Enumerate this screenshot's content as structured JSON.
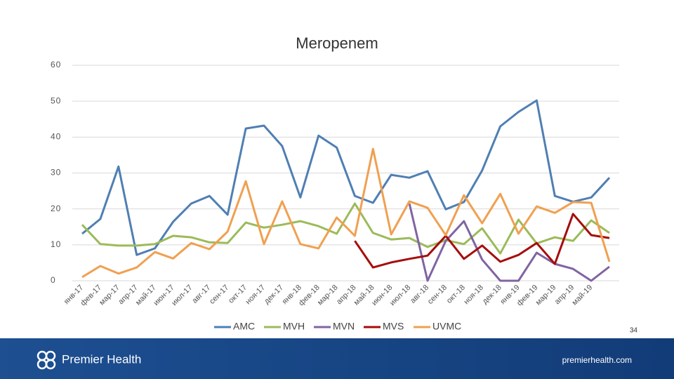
{
  "chart_data": {
    "type": "line",
    "title": "Meropenem",
    "categories": [
      "янв-17",
      "фев-17",
      "мар-17",
      "апр-17",
      "май-17",
      "июн-17",
      "июл-17",
      "авг-17",
      "сен-17",
      "окт-17",
      "ноя-17",
      "дек-17",
      "янв-18",
      "фев-18",
      "мар-18",
      "апр-18",
      "май-18",
      "июн-18",
      "июл-18",
      "авг-18",
      "сен-18",
      "окт-18",
      "ноя-18",
      "дек-18",
      "янв-19",
      "фев-19",
      "мар-19",
      "апр-19",
      "май-19",
      null
    ],
    "series": [
      {
        "name": "AMC",
        "color": "#4f7fb3",
        "values": [
          13.1,
          17.2,
          31.8,
          7.2,
          9,
          16.4,
          21.5,
          23.6,
          18.4,
          42.4,
          43.2,
          37.5,
          23.2,
          40.4,
          37.1,
          23.6,
          21.7,
          29.5,
          28.7,
          30.5,
          19.9,
          21.9,
          30.7,
          43,
          47,
          50.2,
          23.6,
          22,
          23.2,
          28.7
        ]
      },
      {
        "name": "MVH",
        "color": "#9bbb59",
        "values": [
          15.6,
          10.2,
          9.8,
          9.8,
          10.2,
          12.5,
          12.1,
          10.7,
          10.5,
          16.2,
          14.8,
          15.6,
          16.6,
          15.2,
          13.1,
          21.5,
          13.3,
          11.5,
          11.9,
          9.4,
          11.3,
          10.2,
          14.6,
          7.6,
          17,
          10.4,
          12.1,
          11.1,
          16.8,
          13.3
        ]
      },
      {
        "name": "MVN",
        "color": "#8064a2",
        "values": [
          null,
          null,
          null,
          null,
          null,
          null,
          null,
          null,
          null,
          null,
          null,
          null,
          null,
          null,
          null,
          null,
          null,
          null,
          21.5,
          0,
          11.1,
          16.6,
          5.9,
          0,
          0,
          7.8,
          4.7,
          3.3,
          0,
          3.9
        ]
      },
      {
        "name": "MVS",
        "color": "#a50d0d",
        "values": [
          null,
          null,
          null,
          null,
          null,
          null,
          null,
          null,
          null,
          null,
          null,
          null,
          null,
          null,
          null,
          11.1,
          3.7,
          5.1,
          6.1,
          7,
          12.5,
          6.1,
          9.8,
          5.3,
          7.2,
          10.5,
          4.7,
          18.6,
          12.7,
          11.9
        ]
      },
      {
        "name": "UVMC",
        "color": "#f0a050",
        "values": [
          1,
          4.1,
          2,
          3.7,
          8,
          6.2,
          10.5,
          8.8,
          13.7,
          27.7,
          10.2,
          22.1,
          10.2,
          9,
          17.6,
          12.5,
          36.7,
          12.9,
          22.1,
          20.3,
          12.7,
          23.8,
          16,
          24.2,
          13.1,
          20.7,
          18.9,
          21.9,
          21.7,
          5.3
        ]
      }
    ],
    "ylim": [
      0,
      60
    ],
    "yticks": [
      0,
      10,
      20,
      30,
      40,
      50,
      60
    ],
    "grid": true,
    "legend": "bottom"
  },
  "slide": {
    "page_number": "34",
    "logo": "Premier Health",
    "url": "premierhealth.com"
  }
}
